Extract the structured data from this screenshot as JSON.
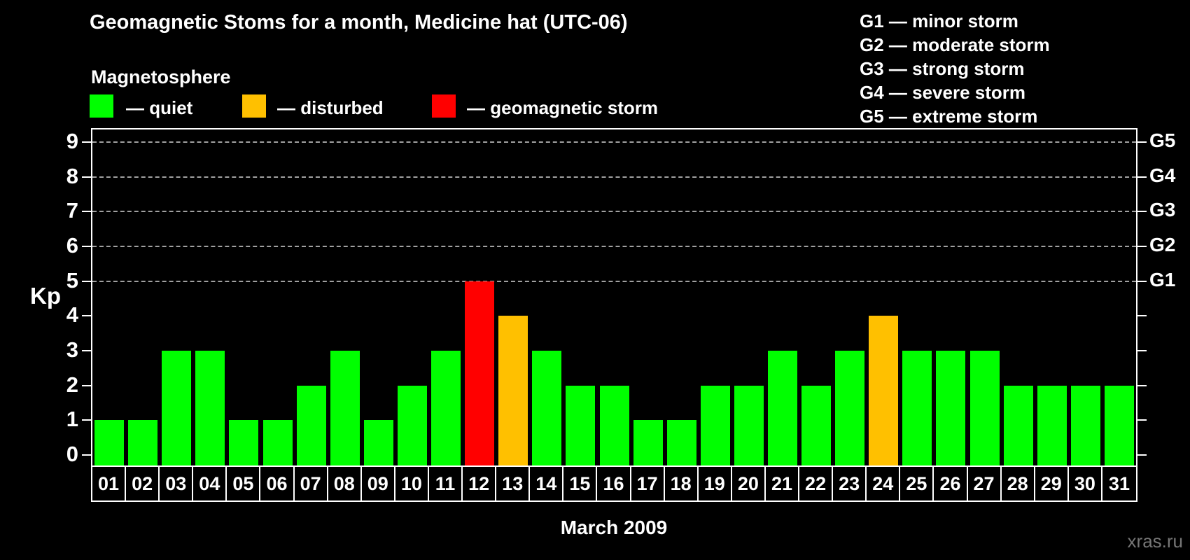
{
  "header": {
    "title": "Geomagnetic Stoms for a month, Medicine hat (UTC-06)",
    "subtitle": "Magnetosphere"
  },
  "legend": {
    "items": [
      {
        "name": "quiet",
        "label": "— quiet",
        "color": "#00FF00"
      },
      {
        "name": "disturbed",
        "label": "— disturbed",
        "color": "#FFC000"
      },
      {
        "name": "storm",
        "label": "— geomagnetic storm",
        "color": "#FF0000"
      }
    ]
  },
  "g_scale_legend": [
    "G1 — minor storm",
    "G2 — moderate storm",
    "G3 — strong storm",
    "G4 — severe storm",
    "G5 — extreme storm"
  ],
  "watermark": "xras.ru",
  "chart_data": {
    "type": "bar",
    "title": "Geomagnetic Stoms for a month, Medicine hat (UTC-06)",
    "xlabel": "March 2009",
    "ylabel": "Kp",
    "ylim": [
      0,
      9
    ],
    "y_ticks": [
      "0",
      "1",
      "2",
      "3",
      "4",
      "5",
      "6",
      "7",
      "8",
      "9"
    ],
    "grid": "horizontal dashed lines at Kp 5,6,7,8,9",
    "legend_position": "top",
    "right_axis_labels": [
      {
        "value": 5,
        "label": "G1"
      },
      {
        "value": 6,
        "label": "G2"
      },
      {
        "value": 7,
        "label": "G3"
      },
      {
        "value": 8,
        "label": "G4"
      },
      {
        "value": 9,
        "label": "G5"
      }
    ],
    "categories": [
      "01",
      "02",
      "03",
      "04",
      "05",
      "06",
      "07",
      "08",
      "09",
      "10",
      "11",
      "12",
      "13",
      "14",
      "15",
      "16",
      "17",
      "18",
      "19",
      "20",
      "21",
      "22",
      "23",
      "24",
      "25",
      "26",
      "27",
      "28",
      "29",
      "30",
      "31"
    ],
    "values": [
      1,
      1,
      3,
      3,
      1,
      1,
      2,
      3,
      1,
      2,
      3,
      5,
      4,
      3,
      2,
      2,
      1,
      1,
      2,
      2,
      3,
      2,
      3,
      4,
      3,
      3,
      3,
      2,
      2,
      2,
      2
    ],
    "statuses": [
      "quiet",
      "quiet",
      "quiet",
      "quiet",
      "quiet",
      "quiet",
      "quiet",
      "quiet",
      "quiet",
      "quiet",
      "quiet",
      "storm",
      "disturbed",
      "quiet",
      "quiet",
      "quiet",
      "quiet",
      "quiet",
      "quiet",
      "quiet",
      "quiet",
      "quiet",
      "quiet",
      "disturbed",
      "quiet",
      "quiet",
      "quiet",
      "quiet",
      "quiet",
      "quiet",
      "quiet"
    ],
    "colors": {
      "quiet": "#00FF00",
      "disturbed": "#FFC000",
      "storm": "#FF0000"
    }
  }
}
